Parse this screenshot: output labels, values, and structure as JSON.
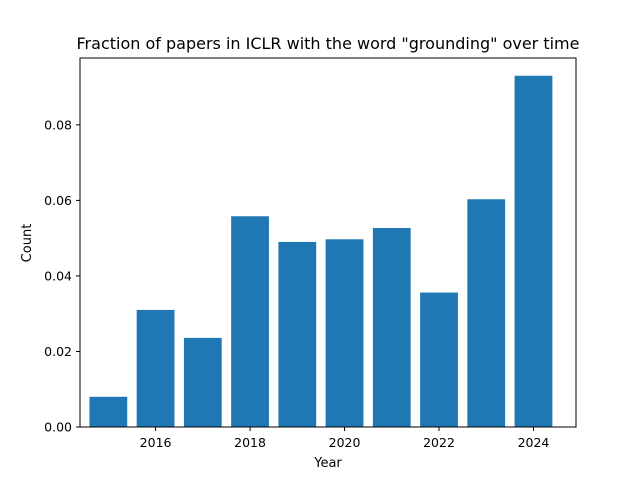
{
  "chart_data": {
    "type": "bar",
    "title": "Fraction of papers in ICLR with the word \"grounding\" over time",
    "xlabel": "Year",
    "ylabel": "Count",
    "x": [
      2015,
      2016,
      2017,
      2018,
      2019,
      2020,
      2021,
      2022,
      2023,
      2024
    ],
    "values": [
      0.008,
      0.031,
      0.0236,
      0.0558,
      0.049,
      0.0497,
      0.0527,
      0.0356,
      0.0603,
      0.093
    ],
    "xlim": [
      2014.4,
      2024.9
    ],
    "ylim": [
      0,
      0.0977
    ],
    "xticks": [
      2016,
      2018,
      2020,
      2022,
      2024
    ],
    "xtick_labels": [
      "2016",
      "2018",
      "2020",
      "2022",
      "2024"
    ],
    "yticks": [
      0,
      0.02,
      0.04,
      0.06,
      0.08
    ],
    "ytick_labels": [
      "0.00",
      "0.02",
      "0.04",
      "0.06",
      "0.08"
    ],
    "grid": false,
    "colors": {
      "bar": "#1f77b4",
      "axis": "#000000"
    }
  }
}
